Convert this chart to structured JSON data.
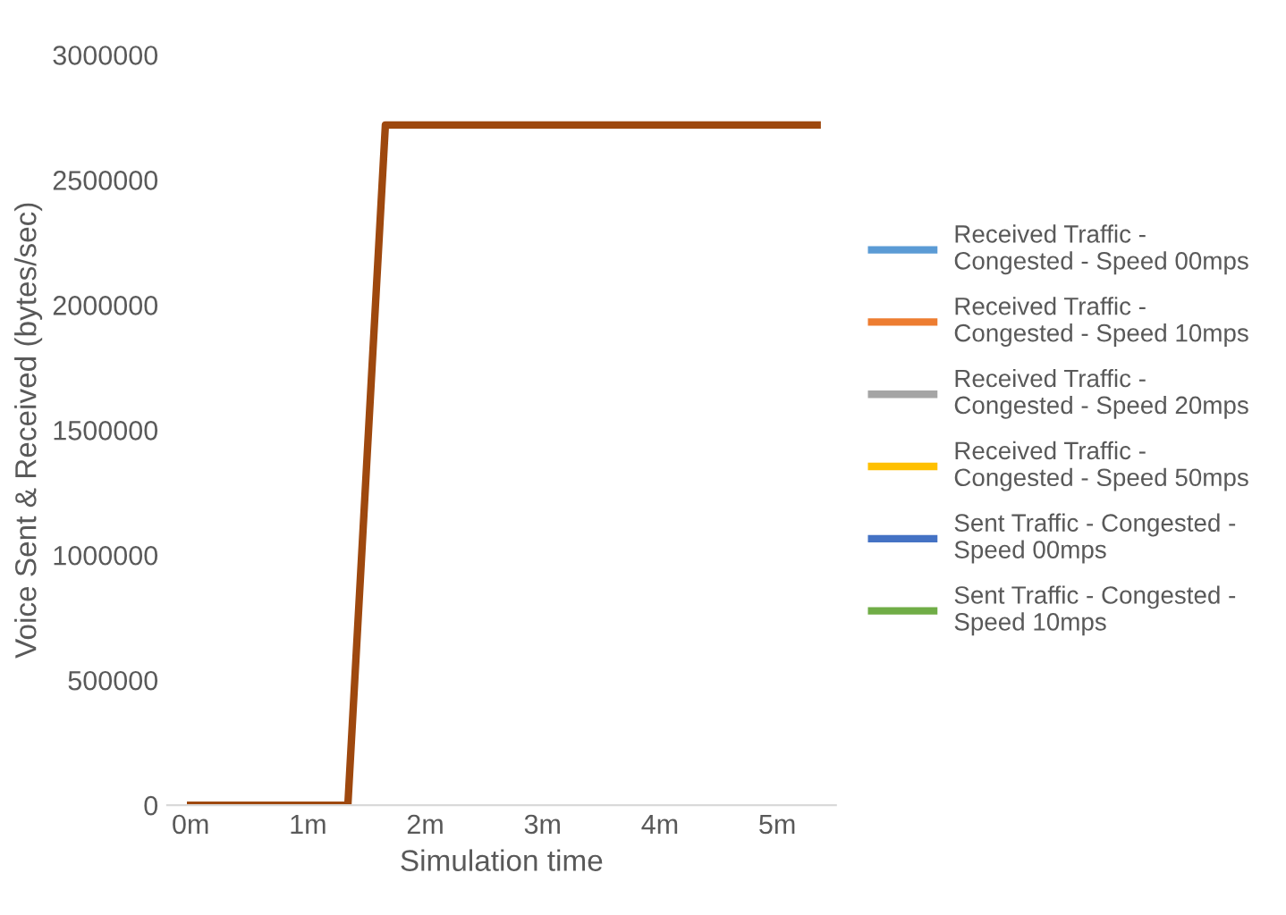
{
  "chart_data": {
    "type": "line",
    "xlabel": "Simulation time",
    "ylabel": "Voice Sent & Received (bytes/sec)",
    "x": [
      0,
      1.34,
      1.66,
      5.34
    ],
    "series": [
      {
        "name": "Received Traffic - Congested - Speed 00mps",
        "color": "#5b9bd5",
        "values": [
          null,
          null,
          null,
          null
        ]
      },
      {
        "name": "Received Traffic - Congested - Speed 10mps",
        "color": "#ed7d31",
        "values": [
          null,
          null,
          null,
          null
        ]
      },
      {
        "name": "Received Traffic - Congested - Speed 20mps",
        "color": "#a5a5a5",
        "values": [
          null,
          null,
          null,
          null
        ]
      },
      {
        "name": "Received Traffic - Congested - Speed 50mps",
        "color": "#ffc000",
        "values": [
          null,
          null,
          null,
          null
        ]
      },
      {
        "name": "Sent Traffic - Congested - Speed 00mps",
        "color": "#4472c4",
        "values": [
          null,
          null,
          null,
          null
        ]
      },
      {
        "name": "Sent Traffic - Congested - Speed 10mps",
        "color": "#70ad47",
        "values": [
          null,
          null,
          null,
          null
        ]
      },
      {
        "color": "#9e480e",
        "values": [
          0,
          0,
          2720000,
          2720000
        ]
      }
    ],
    "xlim": [
      -0.2,
      5.5
    ],
    "xticks": [
      {
        "value": 0,
        "label": "0m"
      },
      {
        "value": 1,
        "label": "1m"
      },
      {
        "value": 2,
        "label": "2m"
      },
      {
        "value": 3,
        "label": "3m"
      },
      {
        "value": 4,
        "label": "4m"
      },
      {
        "value": 5,
        "label": "5m"
      }
    ],
    "ylim": [
      0,
      3000000
    ],
    "yticks": [
      0,
      500000,
      1000000,
      1500000,
      2000000,
      2500000,
      3000000
    ],
    "grid": false,
    "legend": "right",
    "marker": "none",
    "line_style": "solid"
  }
}
